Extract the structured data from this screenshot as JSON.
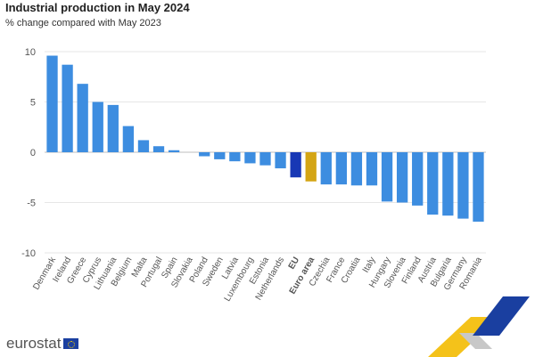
{
  "header": {
    "title": "Industrial production in May 2024",
    "subtitle": "% change compared with May 2023"
  },
  "footer": {
    "logo_text": "eurostat"
  },
  "colors": {
    "country": "#3d8de0",
    "eu": "#1838b5",
    "euro_area": "#d4a514",
    "axis_text": "#555555",
    "grid": "#e6e6e6"
  },
  "chart_data": {
    "type": "bar",
    "title": "Industrial production in May 2024",
    "subtitle": "% change compared with May 2023",
    "categories": [
      "Denmark",
      "Ireland",
      "Greece",
      "Cyprus",
      "Lithuania",
      "Belgium",
      "Malta",
      "Portugal",
      "Spain",
      "Slovakia",
      "Poland",
      "Sweden",
      "Latvia",
      "Luxembourg",
      "Estonia",
      "Netherlands",
      "EU",
      "Euro area",
      "Czechia",
      "France",
      "Croatia",
      "Italy",
      "Hungary",
      "Slovenia",
      "Finland",
      "Austria",
      "Bulgaria",
      "Germany",
      "Romania"
    ],
    "values": [
      9.6,
      8.7,
      6.8,
      5.0,
      4.7,
      2.6,
      1.2,
      0.6,
      0.2,
      0.0,
      -0.4,
      -0.7,
      -0.9,
      -1.1,
      -1.3,
      -1.6,
      -2.5,
      -2.9,
      -3.2,
      -3.2,
      -3.3,
      -3.3,
      -4.9,
      -5.0,
      -5.3,
      -6.2,
      -6.3,
      -6.6,
      -6.9
    ],
    "highlight": {
      "EU": "eu",
      "Euro area": "euro_area"
    },
    "bold_categories": [
      "EU",
      "Euro area"
    ],
    "yticks": [
      10,
      5,
      0,
      -5,
      -10
    ],
    "ylim": [
      -10,
      10
    ],
    "grid": true,
    "xlabel": "",
    "ylabel": ""
  }
}
